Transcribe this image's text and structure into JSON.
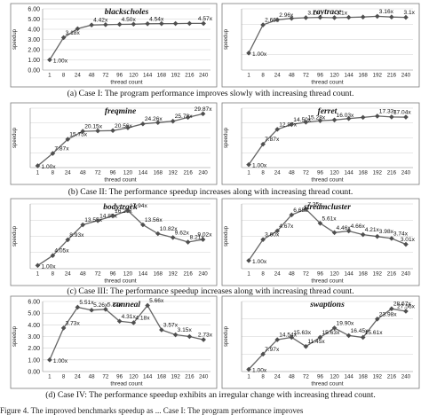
{
  "chart_data": [
    {
      "type": "line",
      "title": "blackscholes",
      "xlabel": "thread count",
      "ylabel": "speedup",
      "categories": [
        "1",
        "8",
        "24",
        "48",
        "72",
        "96",
        "120",
        "144",
        "168",
        "192",
        "216",
        "240"
      ],
      "values": [
        1.0,
        3.18,
        4.05,
        4.42,
        4.45,
        4.48,
        4.5,
        4.54,
        4.55,
        4.56,
        4.57,
        4.57
      ],
      "labels": [
        "1.00x",
        "3.18x",
        "",
        "4.42x",
        "",
        "4.50x",
        "",
        "4.54x",
        "",
        "",
        "",
        "4.57x"
      ],
      "ylim": [
        0,
        6
      ],
      "yticks": [
        "0.00",
        "1.00",
        "2.00",
        "3.00",
        "4.00",
        "5.00",
        "6.00"
      ]
    },
    {
      "type": "line",
      "title": "raytrace",
      "xlabel": "thread count",
      "ylabel": "speedup",
      "categories": [
        "1",
        "8",
        "24",
        "48",
        "72",
        "96",
        "120",
        "144",
        "168",
        "192",
        "216",
        "240"
      ],
      "values": [
        1.0,
        2.66,
        2.96,
        3.04,
        3.08,
        3.1,
        3.08,
        3.1,
        3.12,
        3.16,
        3.12,
        3.1
      ],
      "labels": [
        "1.00x",
        "2.66x",
        "2.96x",
        "",
        "3.1x",
        "",
        "3.1x",
        "",
        "",
        "3.16x",
        "",
        "3.1x"
      ],
      "ylim": [
        0,
        3.6
      ],
      "yticks": [
        "",
        "",
        "",
        "",
        ""
      ]
    },
    {
      "type": "line",
      "title": "freqmine",
      "xlabel": "thread count",
      "ylabel": "speedup",
      "categories": [
        "1",
        "8",
        "24",
        "48",
        "72",
        "96",
        "120",
        "144",
        "168",
        "192",
        "216",
        "240"
      ],
      "values": [
        1.0,
        7.87,
        15.75,
        20.15,
        20.4,
        20.56,
        22.1,
        24.26,
        25.0,
        25.78,
        27.9,
        29.87
      ],
      "labels": [
        "1.00x",
        "7.87x",
        "15.75x",
        "20.15x",
        "",
        "20.56x",
        "",
        "24.26x",
        "",
        "25.78x",
        "",
        "29.87x"
      ],
      "ylim": [
        0,
        33
      ],
      "yticks": [
        "",
        "",
        "",
        "",
        ""
      ]
    },
    {
      "type": "line",
      "title": "ferret",
      "xlabel": "thread count",
      "ylabel": "speedup",
      "categories": [
        "1",
        "8",
        "24",
        "48",
        "72",
        "96",
        "120",
        "144",
        "168",
        "192",
        "216",
        "240"
      ],
      "values": [
        1.0,
        7.87,
        12.87,
        14.5,
        15.28,
        15.8,
        16.03,
        16.5,
        16.9,
        17.33,
        17.04,
        17.0
      ],
      "labels": [
        "1.00x",
        "7.87x",
        "12.87x",
        "14.50x",
        "15.28x",
        "",
        "16.03x",
        "",
        "",
        "17.33x",
        "17.04x",
        ""
      ],
      "ylim": [
        0,
        20
      ],
      "yticks": [
        "",
        "",
        "",
        "",
        ""
      ]
    },
    {
      "type": "line",
      "title": "bodytrack",
      "xlabel": "thread count",
      "ylabel": "speedup",
      "categories": [
        "1",
        "8",
        "24",
        "48",
        "72",
        "96",
        "120",
        "144",
        "168",
        "192",
        "216",
        "240"
      ],
      "values": [
        1.0,
        4.05,
        8.93,
        13.55,
        14.85,
        16.29,
        17.94,
        13.56,
        10.82,
        9.62,
        8.21,
        9.02
      ],
      "labels": [
        "1.00x",
        "4.05x",
        "8.93x",
        "13.55x",
        "14.85x",
        "16.29x",
        "17.94x",
        "13.56x",
        "10.82x",
        "9.62x",
        "8.21x",
        "9.02x"
      ],
      "ylim": [
        0,
        20
      ],
      "yticks": [
        "",
        "",
        "",
        "",
        ""
      ]
    },
    {
      "type": "line",
      "title": "streamcluster",
      "xlabel": "thread count",
      "ylabel": "speedup",
      "categories": [
        "1",
        "8",
        "24",
        "48",
        "72",
        "96",
        "120",
        "144",
        "168",
        "192",
        "216",
        "240"
      ],
      "values": [
        1.0,
        3.6,
        4.67,
        6.65,
        7.35,
        5.61,
        4.46,
        4.66,
        4.21,
        3.98,
        3.74,
        3.01
      ],
      "labels": [
        "1.00x",
        "3.60x",
        "4.67x",
        "6.65x",
        "7.35x",
        "5.61x",
        "4.46x",
        "4.66x",
        "4.21x",
        "3.98x",
        "3.74x",
        "3.01x"
      ],
      "ylim": [
        0,
        8
      ],
      "yticks": [
        "",
        "",
        "",
        "",
        ""
      ]
    },
    {
      "type": "line",
      "title": "canneal",
      "xlabel": "thread count",
      "ylabel": "speedup",
      "categories": [
        "1",
        "8",
        "24",
        "48",
        "72",
        "96",
        "120",
        "144",
        "168",
        "192",
        "216",
        "240"
      ],
      "values": [
        1.0,
        3.73,
        5.51,
        5.26,
        5.33,
        4.31,
        4.18,
        5.66,
        3.57,
        3.15,
        3.0,
        2.73
      ],
      "labels": [
        "1.00x",
        "3.73x",
        "5.51x",
        "5.26x",
        "5.33x",
        "4.31x",
        "4.18x",
        "5.66x",
        "3.57x",
        "3.15x",
        "",
        "2.73x"
      ],
      "ylim": [
        0,
        6
      ],
      "yticks": [
        "0.00",
        "1.00",
        "2.00",
        "3.00",
        "4.00",
        "5.00",
        "6.00"
      ]
    },
    {
      "type": "line",
      "title": "swaptions",
      "xlabel": "thread count",
      "ylabel": "speedup",
      "categories": [
        "1",
        "8",
        "24",
        "48",
        "72",
        "96",
        "120",
        "144",
        "168",
        "192",
        "216",
        "240"
      ],
      "values": [
        1.0,
        7.97,
        14.54,
        15.63,
        11.45,
        15.63,
        19.9,
        16.45,
        15.61,
        23.98,
        28.67,
        27.56
      ],
      "labels": [
        "1.00x",
        "7.97x",
        "14.54x",
        "15.63x",
        "11.45x",
        "15.63x",
        "19.90x",
        "16.45x",
        "15.61x",
        "23.98x",
        "28.67x",
        "27.56x"
      ],
      "ylim": [
        0,
        32
      ],
      "yticks": [
        "",
        "",
        "",
        "",
        ""
      ]
    }
  ],
  "captions": [
    "(a)    Case I: The program performance improves slowly with increasing thread count.",
    "(b)    Case II: The performance speedup increases along with increasing thread count.",
    "(c)    Case III: The performance speedup increases along with increasing thread count.",
    "(d)    Case IV: The performance speedup exhibits an irregular change with increasing thread count."
  ],
  "footer": "Figure 4. The improved benchmarks speedup as ... Case I: The program performance improves"
}
